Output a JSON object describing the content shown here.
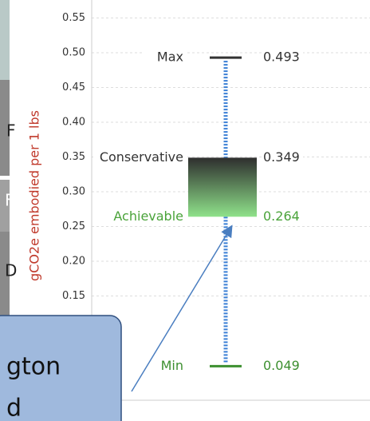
{
  "background": {
    "letters": [
      "F",
      "F",
      "D"
    ]
  },
  "chart_data": {
    "type": "range",
    "ylabel": "gCO2e embodied per 1 lbs",
    "ylim": [
      0,
      0.55
    ],
    "yticks": [
      0.15,
      {
        "value": 0.2,
        "label": "0.20"
      },
      0.25,
      {
        "value": 0.3,
        "label": "0.30"
      },
      0.35,
      {
        "value": 0.4,
        "label": "0.40"
      },
      0.45,
      {
        "value": 0.5,
        "label": "0.50"
      },
      0.55
    ],
    "grid": true,
    "whisker_color": "#3a7fd5",
    "series": [
      {
        "name": "Max",
        "color": "#333333",
        "values": [
          0.493
        ]
      },
      {
        "name": "Conservative",
        "color": "#333333",
        "values": [
          0.349
        ]
      },
      {
        "name": "Achievable",
        "color": "#4aa33a",
        "values": [
          0.264
        ]
      },
      {
        "name": "Min",
        "color": "#3c8f2f",
        "values": [
          0.049
        ]
      }
    ]
  },
  "callout": {
    "lines": [
      "gton",
      "d"
    ]
  }
}
